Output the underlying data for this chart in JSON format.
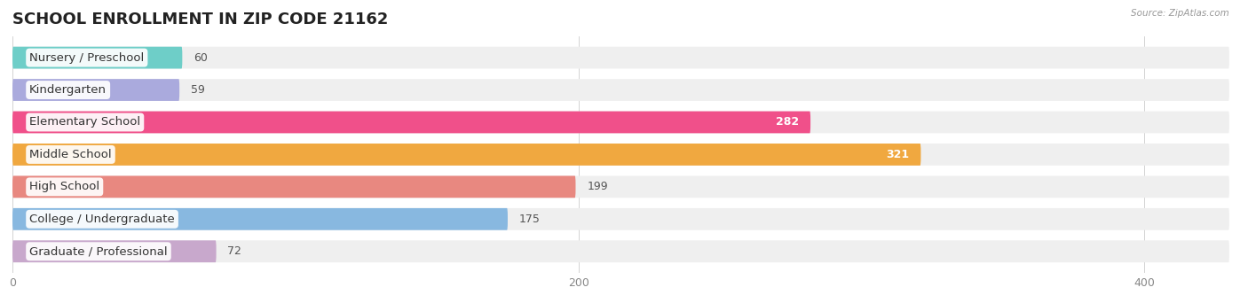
{
  "title": "SCHOOL ENROLLMENT IN ZIP CODE 21162",
  "source": "Source: ZipAtlas.com",
  "categories": [
    "Nursery / Preschool",
    "Kindergarten",
    "Elementary School",
    "Middle School",
    "High School",
    "College / Undergraduate",
    "Graduate / Professional"
  ],
  "values": [
    60,
    59,
    282,
    321,
    199,
    175,
    72
  ],
  "bar_colors": [
    "#6ecec8",
    "#aaaadd",
    "#f0508a",
    "#f0a840",
    "#e88880",
    "#88b8e0",
    "#c8a8cc"
  ],
  "bar_bg_color": "#efefef",
  "xlim_max": 430,
  "xticks": [
    0,
    200,
    400
  ],
  "title_fontsize": 13,
  "label_fontsize": 9.5,
  "value_fontsize": 9,
  "bar_height": 0.68,
  "bar_gap": 0.32,
  "figsize": [
    14.06,
    3.42
  ],
  "dpi": 100
}
